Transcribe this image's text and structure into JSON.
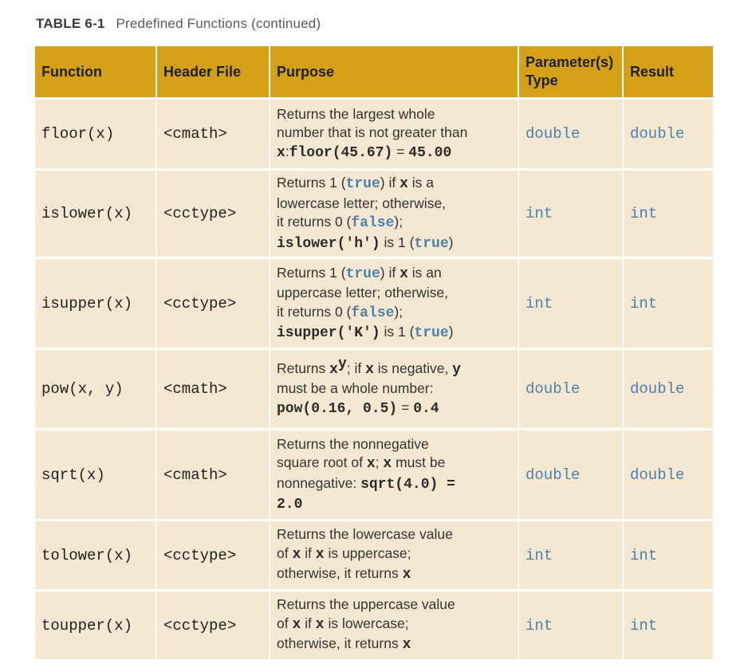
{
  "caption": {
    "label": "TABLE 6-1",
    "title": "Predefined Functions (continued)"
  },
  "headers": [
    "Function",
    "Header File",
    "Purpose",
    "Parameter(s) Type",
    "Result"
  ],
  "rows": [
    {
      "function": "floor(x)",
      "header": "<cmath>",
      "param_type": "double",
      "result": "double",
      "purpose": [
        [
          {
            "t": "Returns the largest whole",
            "s": "p"
          }
        ],
        [
          {
            "t": "number that is not greater than",
            "s": "p"
          }
        ],
        [
          {
            "t": "x",
            "s": "c"
          },
          {
            "t": ":",
            "s": "p"
          },
          {
            "t": "floor(45.67)",
            "s": "c"
          },
          {
            "t": " = ",
            "s": "p"
          },
          {
            "t": "45.00",
            "s": "c"
          }
        ]
      ]
    },
    {
      "function": "islower(x)",
      "header": "<cctype>",
      "param_type": "int",
      "result": "int",
      "purpose": [
        [
          {
            "t": "Returns 1 (",
            "s": "p"
          },
          {
            "t": "true",
            "s": "k"
          },
          {
            "t": ") if ",
            "s": "p"
          },
          {
            "t": "x",
            "s": "c"
          },
          {
            "t": " is a",
            "s": "p"
          }
        ],
        [
          {
            "t": "lowercase letter; otherwise,",
            "s": "p"
          }
        ],
        [
          {
            "t": "it returns 0 (",
            "s": "p"
          },
          {
            "t": "false",
            "s": "k"
          },
          {
            "t": ");",
            "s": "p"
          }
        ],
        [
          {
            "t": "islower('h')",
            "s": "c"
          },
          {
            "t": " is 1 (",
            "s": "p"
          },
          {
            "t": "true",
            "s": "k"
          },
          {
            "t": ")",
            "s": "p"
          }
        ]
      ]
    },
    {
      "function": "isupper(x)",
      "header": "<cctype>",
      "param_type": "int",
      "result": "int",
      "purpose": [
        [
          {
            "t": "Returns 1 (",
            "s": "p"
          },
          {
            "t": "true",
            "s": "k"
          },
          {
            "t": ") if ",
            "s": "p"
          },
          {
            "t": "x",
            "s": "c"
          },
          {
            "t": " is an",
            "s": "p"
          }
        ],
        [
          {
            "t": "uppercase letter; otherwise,",
            "s": "p"
          }
        ],
        [
          {
            "t": "it returns 0 (",
            "s": "p"
          },
          {
            "t": "false",
            "s": "k"
          },
          {
            "t": ");",
            "s": "p"
          }
        ],
        [
          {
            "t": "isupper('K')",
            "s": "c"
          },
          {
            "t": " is 1 (",
            "s": "p"
          },
          {
            "t": "true",
            "s": "k"
          },
          {
            "t": ")",
            "s": "p"
          }
        ]
      ]
    },
    {
      "function": "pow(x, y)",
      "header": "<cmath>",
      "param_type": "double",
      "result": "double",
      "purpose": [
        [
          {
            "t": "Returns ",
            "s": "p"
          },
          {
            "t": "x",
            "s": "c"
          },
          {
            "t": "y",
            "s": "sup"
          },
          {
            "t": "; if ",
            "s": "p"
          },
          {
            "t": "x",
            "s": "c"
          },
          {
            "t": " is negative, ",
            "s": "p"
          },
          {
            "t": "y",
            "s": "c"
          }
        ],
        [
          {
            "t": "must be a whole number:",
            "s": "p"
          }
        ],
        [
          {
            "t": "pow(0.16, 0.5)",
            "s": "c"
          },
          {
            "t": " = ",
            "s": "p"
          },
          {
            "t": "0.4",
            "s": "c"
          }
        ]
      ]
    },
    {
      "function": "sqrt(x)",
      "header": "<cmath>",
      "param_type": "double",
      "result": "double",
      "purpose": [
        [
          {
            "t": "Returns the nonnegative",
            "s": "p"
          }
        ],
        [
          {
            "t": "square root of ",
            "s": "p"
          },
          {
            "t": "x",
            "s": "c"
          },
          {
            "t": "; ",
            "s": "p"
          },
          {
            "t": "x",
            "s": "c"
          },
          {
            "t": " must be",
            "s": "p"
          }
        ],
        [
          {
            "t": "nonnegative: ",
            "s": "p"
          },
          {
            "t": "sqrt(4.0)  =",
            "s": "c"
          }
        ],
        [
          {
            "t": "2.0",
            "s": "c"
          }
        ]
      ]
    },
    {
      "function": "tolower(x)",
      "header": "<cctype>",
      "param_type": "int",
      "result": "int",
      "purpose": [
        [
          {
            "t": "Returns the lowercase value",
            "s": "p"
          }
        ],
        [
          {
            "t": "of ",
            "s": "p"
          },
          {
            "t": "x",
            "s": "c"
          },
          {
            "t": " if ",
            "s": "p"
          },
          {
            "t": "x",
            "s": "c"
          },
          {
            "t": " is uppercase;",
            "s": "p"
          }
        ],
        [
          {
            "t": "otherwise, it returns ",
            "s": "p"
          },
          {
            "t": "x",
            "s": "c"
          }
        ]
      ]
    },
    {
      "function": "toupper(x)",
      "header": "<cctype>",
      "param_type": "int",
      "result": "int",
      "purpose": [
        [
          {
            "t": "Returns the uppercase value",
            "s": "p"
          }
        ],
        [
          {
            "t": "of ",
            "s": "p"
          },
          {
            "t": "x",
            "s": "c"
          },
          {
            "t": " if ",
            "s": "p"
          },
          {
            "t": "x",
            "s": "c"
          },
          {
            "t": " is lowercase;",
            "s": "p"
          }
        ],
        [
          {
            "t": "otherwise, it returns ",
            "s": "p"
          },
          {
            "t": "x",
            "s": "c"
          }
        ]
      ]
    }
  ]
}
